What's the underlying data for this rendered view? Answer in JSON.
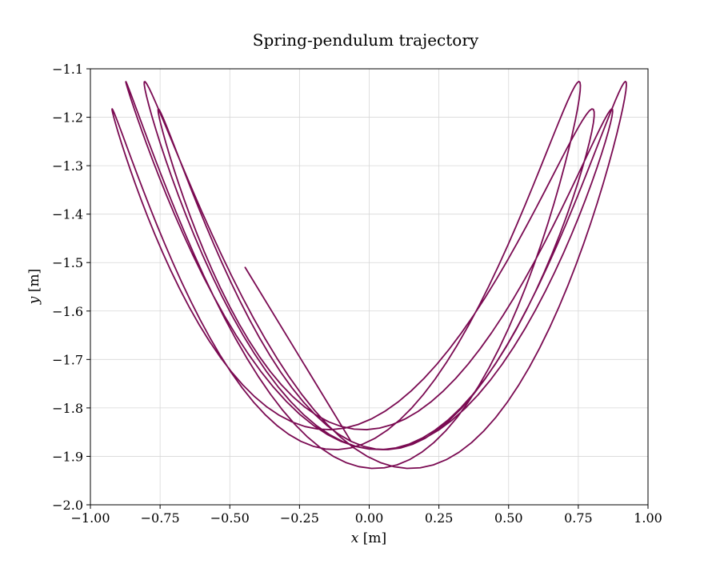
{
  "chart_data": {
    "type": "line",
    "title": "Spring-pendulum trajectory",
    "xlabel": {
      "var": "x",
      "unit": " [m]"
    },
    "ylabel": {
      "var": "y",
      "unit": " [m]"
    },
    "xlim": [
      -1.0,
      1.0
    ],
    "ylim": [
      -2.0,
      -1.1
    ],
    "xticks": [
      -1.0,
      -0.75,
      -0.5,
      -0.25,
      0.0,
      0.25,
      0.5,
      0.75,
      1.0
    ],
    "xtick_labels": [
      "−1.00",
      "−0.75",
      "−0.50",
      "−0.25",
      "0.00",
      "0.25",
      "0.50",
      "0.75",
      "1.00"
    ],
    "yticks": [
      -2.0,
      -1.9,
      -1.8,
      -1.7,
      -1.6,
      -1.5,
      -1.4,
      -1.3,
      -1.2,
      -1.1
    ],
    "ytick_labels": [
      "−2.0",
      "−1.9",
      "−1.8",
      "−1.7",
      "−1.6",
      "−1.5",
      "−1.4",
      "−1.3",
      "−1.2",
      "−1.1"
    ],
    "grid": true,
    "series": [
      {
        "color": "#7a0a52",
        "model": {
          "start_point": [
            -0.445,
            -1.51
          ],
          "ellipse_center": [
            0.0,
            -1.52
          ],
          "ellipse_radii": [
            0.835,
            0.365
          ],
          "pendulum_x_amplitude": 0.84,
          "pendulum_phase_steps": 8,
          "pendulum_phase_start": 0.12,
          "pendulum_phase_end": 1.12,
          "tilt": 0.09,
          "samples": 900
        }
      }
    ]
  }
}
